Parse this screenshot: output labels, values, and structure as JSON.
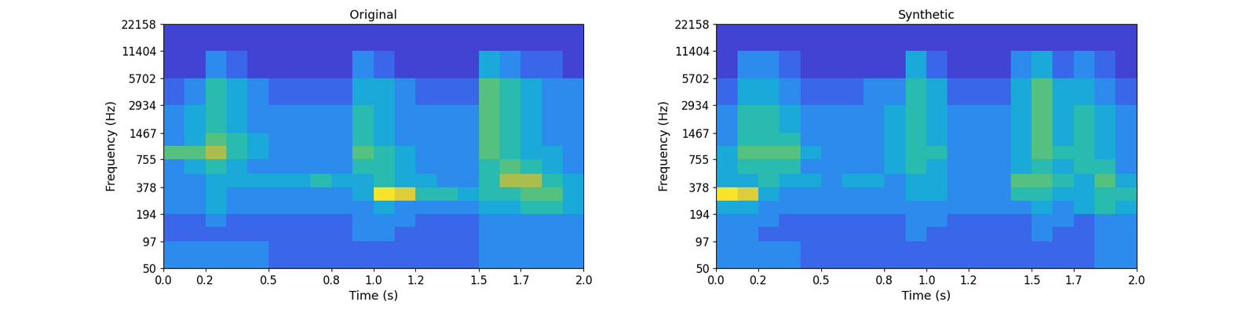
{
  "chart_data": [
    {
      "type": "heatmap",
      "title": "Original",
      "x_label": "Time (s)",
      "y_label": "Frequency (Hz)",
      "log": "y",
      "xlim": [
        0,
        2
      ],
      "xticks": [
        {
          "value": 0,
          "label": "0.0"
        },
        0.2,
        0.5,
        0.8,
        {
          "value": 1,
          "label": "1.0"
        },
        1.2,
        1.5,
        1.7,
        {
          "value": 2,
          "label": "2.0"
        }
      ],
      "ylim": [
        50,
        22158
      ],
      "yticks": [
        50,
        97,
        194,
        378,
        755,
        1467,
        2934,
        5702,
        11404,
        22158
      ],
      "time_edges": [
        0,
        0.1,
        0.2,
        0.3,
        0.4,
        0.5,
        0.6,
        0.7,
        0.8,
        0.9,
        1.0,
        1.1,
        1.2,
        1.3,
        1.4,
        1.5,
        1.6,
        1.7,
        1.8,
        1.9,
        2.0
      ],
      "freq_edges": [
        50,
        97,
        140,
        194,
        270,
        378,
        530,
        755,
        1060,
        1467,
        2934,
        5702,
        11404,
        22158
      ],
      "cell_range": [
        0,
        10
      ],
      "cells": [
        [
          3,
          3,
          3,
          3,
          3,
          2,
          2,
          2,
          2,
          2,
          2,
          2,
          2,
          2,
          2,
          3,
          3,
          3,
          3,
          3
        ],
        [
          2,
          2,
          2,
          2,
          2,
          2,
          2,
          2,
          2,
          3,
          3,
          2,
          2,
          2,
          2,
          3,
          3,
          3,
          3,
          3
        ],
        [
          2,
          2,
          3,
          2,
          2,
          2,
          2,
          2,
          2,
          3,
          3,
          3,
          2,
          2,
          2,
          3,
          3,
          3,
          3,
          3
        ],
        [
          3,
          3,
          4,
          3,
          3,
          3,
          3,
          3,
          3,
          3,
          4,
          3,
          3,
          3,
          3,
          4,
          4,
          5,
          5,
          4
        ],
        [
          3,
          3,
          4,
          3,
          3,
          3,
          3,
          3,
          3,
          4,
          9,
          8,
          5,
          5,
          4,
          5,
          5,
          6,
          6,
          4
        ],
        [
          3,
          3,
          4,
          4,
          4,
          4,
          4,
          5,
          4,
          4,
          5,
          4,
          4,
          3,
          3,
          5,
          7,
          7,
          5,
          4
        ],
        [
          3,
          4,
          5,
          4,
          3,
          3,
          3,
          3,
          3,
          5,
          5,
          4,
          3,
          3,
          3,
          5,
          6,
          5,
          4,
          3
        ],
        [
          6,
          6,
          7,
          5,
          4,
          3,
          3,
          3,
          3,
          6,
          5,
          4,
          3,
          3,
          3,
          6,
          5,
          4,
          4,
          3
        ],
        [
          3,
          4,
          6,
          5,
          4,
          3,
          3,
          3,
          3,
          5,
          4,
          3,
          3,
          3,
          3,
          6,
          5,
          4,
          3,
          3
        ],
        [
          3,
          4,
          5,
          4,
          3,
          3,
          3,
          3,
          3,
          5,
          4,
          3,
          3,
          3,
          3,
          6,
          5,
          4,
          3,
          3
        ],
        [
          2,
          3,
          5,
          4,
          3,
          2,
          2,
          2,
          2,
          4,
          4,
          3,
          2,
          2,
          2,
          6,
          5,
          4,
          3,
          3
        ],
        [
          1,
          1,
          3,
          2,
          1,
          1,
          1,
          1,
          1,
          3,
          2,
          1,
          1,
          1,
          1,
          4,
          3,
          2,
          2,
          1
        ],
        [
          1,
          1,
          1,
          1,
          1,
          1,
          1,
          1,
          1,
          1,
          1,
          1,
          1,
          1,
          1,
          1,
          1,
          1,
          1,
          1
        ]
      ]
    },
    {
      "type": "heatmap",
      "title": "Synthetic",
      "x_label": "Time (s)",
      "y_label": "Frequency (Hz)",
      "log": "y",
      "xlim": [
        0,
        2
      ],
      "xticks": [
        {
          "value": 0,
          "label": "0.0"
        },
        0.2,
        0.5,
        0.8,
        {
          "value": 1,
          "label": "1.0"
        },
        1.2,
        1.5,
        1.7,
        {
          "value": 2,
          "label": "2.0"
        }
      ],
      "ylim": [
        50,
        22158
      ],
      "yticks": [
        50,
        97,
        194,
        378,
        755,
        1467,
        2934,
        5702,
        11404,
        22158
      ],
      "time_edges": [
        0,
        0.1,
        0.2,
        0.3,
        0.4,
        0.5,
        0.6,
        0.7,
        0.8,
        0.9,
        1.0,
        1.1,
        1.2,
        1.3,
        1.4,
        1.5,
        1.6,
        1.7,
        1.8,
        1.9,
        2.0
      ],
      "freq_edges": [
        50,
        97,
        140,
        194,
        270,
        378,
        530,
        755,
        1060,
        1467,
        2934,
        5702,
        11404,
        22158
      ],
      "cell_range": [
        0,
        10
      ],
      "cells": [
        [
          3,
          3,
          3,
          3,
          2,
          2,
          2,
          2,
          2,
          2,
          2,
          2,
          2,
          2,
          2,
          2,
          2,
          2,
          3,
          3
        ],
        [
          3,
          3,
          2,
          2,
          2,
          2,
          2,
          2,
          2,
          3,
          2,
          2,
          2,
          2,
          2,
          3,
          2,
          2,
          3,
          3
        ],
        [
          3,
          3,
          3,
          2,
          2,
          2,
          2,
          2,
          2,
          3,
          3,
          2,
          2,
          2,
          2,
          3,
          3,
          2,
          3,
          3
        ],
        [
          4,
          4,
          3,
          3,
          3,
          3,
          3,
          3,
          3,
          3,
          3,
          3,
          3,
          3,
          3,
          4,
          3,
          4,
          5,
          4
        ],
        [
          9,
          8,
          4,
          3,
          3,
          3,
          3,
          3,
          3,
          4,
          4,
          3,
          3,
          3,
          5,
          5,
          4,
          4,
          5,
          5
        ],
        [
          4,
          4,
          5,
          4,
          4,
          3,
          4,
          4,
          3,
          4,
          4,
          3,
          3,
          3,
          6,
          6,
          5,
          4,
          6,
          4
        ],
        [
          4,
          5,
          5,
          5,
          3,
          3,
          3,
          3,
          4,
          5,
          4,
          3,
          3,
          3,
          4,
          5,
          4,
          5,
          5,
          3
        ],
        [
          4,
          6,
          6,
          6,
          4,
          3,
          3,
          3,
          4,
          5,
          5,
          3,
          3,
          3,
          4,
          6,
          5,
          5,
          4,
          3
        ],
        [
          3,
          5,
          5,
          5,
          3,
          3,
          3,
          3,
          4,
          5,
          4,
          3,
          3,
          3,
          4,
          6,
          4,
          5,
          4,
          3
        ],
        [
          3,
          5,
          5,
          4,
          3,
          3,
          3,
          3,
          4,
          5,
          4,
          3,
          3,
          3,
          4,
          6,
          4,
          5,
          4,
          3
        ],
        [
          2,
          4,
          4,
          3,
          2,
          2,
          2,
          3,
          3,
          5,
          4,
          2,
          2,
          2,
          4,
          6,
          4,
          4,
          3,
          2
        ],
        [
          1,
          3,
          3,
          2,
          1,
          1,
          1,
          1,
          1,
          4,
          2,
          1,
          1,
          1,
          3,
          4,
          2,
          3,
          2,
          1
        ],
        [
          1,
          1,
          1,
          1,
          1,
          1,
          1,
          1,
          1,
          1,
          1,
          1,
          1,
          1,
          1,
          1,
          1,
          1,
          1,
          1
        ]
      ]
    }
  ]
}
